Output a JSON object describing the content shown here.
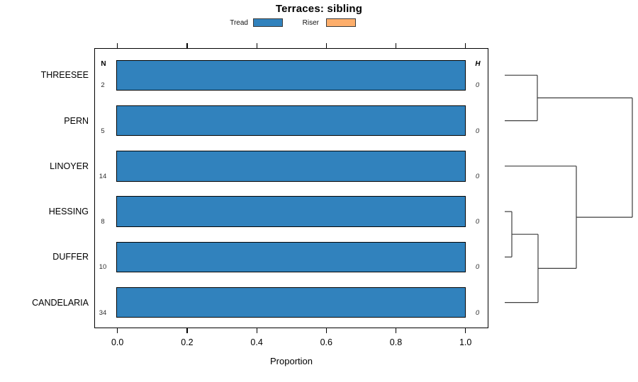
{
  "title": "Terraces: sibling",
  "legend": [
    {
      "label": "Tread",
      "color": "#3182bd"
    },
    {
      "label": "Riser",
      "color": "#fdae6b"
    }
  ],
  "columns": {
    "n_header": "N",
    "h_header": "H"
  },
  "axis": {
    "label": "Proportion",
    "tick_labels": [
      "0.0",
      "0.2",
      "0.4",
      "0.6",
      "0.8",
      "1.0"
    ]
  },
  "chart_data": {
    "type": "bar",
    "orientation": "horizontal",
    "title": "Terraces: sibling",
    "xlabel": "Proportion",
    "xlim": [
      0,
      1
    ],
    "xticks": [
      0.0,
      0.2,
      0.4,
      0.6,
      0.8,
      1.0
    ],
    "grid": false,
    "legend_position": "top",
    "categories": [
      "THREESEE",
      "PERN",
      "LINOYER",
      "HESSING",
      "DUFFER",
      "CANDELARIA"
    ],
    "series": [
      {
        "name": "Tread",
        "color": "#3182bd",
        "values": [
          1.0,
          1.0,
          1.0,
          1.0,
          1.0,
          1.0
        ]
      },
      {
        "name": "Riser",
        "color": "#fdae6b",
        "values": [
          0.0,
          0.0,
          0.0,
          0.0,
          0.0,
          0.0
        ]
      }
    ],
    "n_values": [
      2,
      5,
      14,
      8,
      10,
      34
    ],
    "h_values": [
      0,
      0,
      0,
      0,
      0,
      0
    ],
    "dendrogram": {
      "structure": "((THREESEE,PERN),(LINOYER,((HESSING,DUFFER),CANDELARIA)))",
      "line_color": "#3d3d3d",
      "segments": [
        [
          712,
          106.3,
          758,
          106.3
        ],
        [
          712,
          170.6,
          758,
          170.6
        ],
        [
          758,
          106.3,
          758,
          170.6
        ],
        [
          758,
          138.4,
          892,
          138.4
        ],
        [
          712,
          234.8,
          813,
          234.8
        ],
        [
          712,
          299.1,
          722,
          299.1
        ],
        [
          712,
          363.3,
          722,
          363.3
        ],
        [
          722,
          299.1,
          722,
          363.3
        ],
        [
          722,
          331.2,
          759,
          331.2
        ],
        [
          712,
          427.6,
          759,
          427.6
        ],
        [
          759,
          331.2,
          759,
          427.6
        ],
        [
          759,
          379.4,
          813,
          379.4
        ],
        [
          813,
          234.8,
          813,
          379.4
        ],
        [
          813,
          307.1,
          892,
          307.1
        ],
        [
          892,
          138.4,
          892,
          307.1
        ]
      ]
    }
  }
}
